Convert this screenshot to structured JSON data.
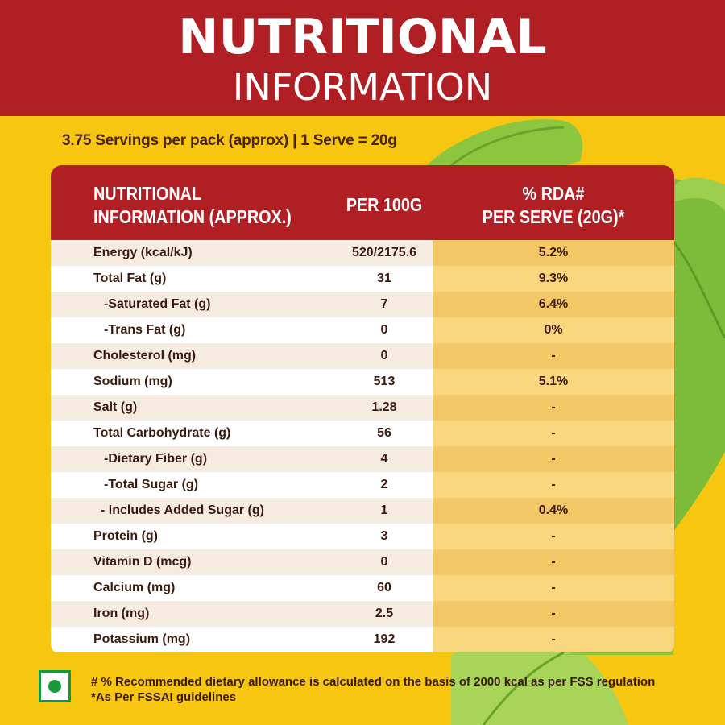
{
  "header": {
    "title_line1": "NUTRITIONAL",
    "title_line2": "INFORMATION"
  },
  "servings_text": "3.75 Servings per pack (approx) | 1 Serve = 20g",
  "table": {
    "headers": {
      "nutrient_line1": "NUTRITIONAL",
      "nutrient_line2": "INFORMATION (APPROX.)",
      "per100": "PER 100G",
      "rda_line1": "% RDA#",
      "rda_line2": "PER SERVE (20G)*"
    },
    "rows": [
      {
        "name": "Energy (kcal/kJ)",
        "per100": "520/2175.6",
        "rda": "5.2%"
      },
      {
        "name": "Total Fat (g)",
        "per100": "31",
        "rda": "9.3%"
      },
      {
        "name": "-Saturated Fat (g)",
        "per100": "7",
        "rda": "6.4%"
      },
      {
        "name": "-Trans Fat (g)",
        "per100": "0",
        "rda": "0%"
      },
      {
        "name": "Cholesterol (mg)",
        "per100": "0",
        "rda": "-"
      },
      {
        "name": "Sodium (mg)",
        "per100": "513",
        "rda": "5.1%"
      },
      {
        "name": "Salt (g)",
        "per100": "1.28",
        "rda": "-"
      },
      {
        "name": "Total Carbohydrate (g)",
        "per100": "56",
        "rda": "-"
      },
      {
        "name": "-Dietary Fiber (g)",
        "per100": "4",
        "rda": "-"
      },
      {
        "name": "-Total Sugar (g)",
        "per100": "2",
        "rda": "-"
      },
      {
        "name": "- Includes Added Sugar (g)",
        "per100": "1",
        "rda": "0.4%"
      },
      {
        "name": "Protein (g)",
        "per100": "3",
        "rda": "-"
      },
      {
        "name": "Vitamin D (mcg)",
        "per100": "0",
        "rda": "-"
      },
      {
        "name": "Calcium (mg)",
        "per100": "60",
        "rda": "-"
      },
      {
        "name": "Iron (mg)",
        "per100": "2.5",
        "rda": "-"
      },
      {
        "name": "Potassium (mg)",
        "per100": "192",
        "rda": "-"
      }
    ]
  },
  "footnote": {
    "line1": "# % Recommended dietary allowance  is calculated on the basis of 2000 kcal as per FSS regulation",
    "line2": "*As Per FSSAI guidelines"
  },
  "icons": {
    "veg_mark": "veg-symbol-icon",
    "background": "leaf-illustration"
  },
  "colors": {
    "background": "#f7c611",
    "header_red": "#b01f24",
    "text_brown": "#3b1a0f",
    "veg_green": "#159a3b"
  }
}
